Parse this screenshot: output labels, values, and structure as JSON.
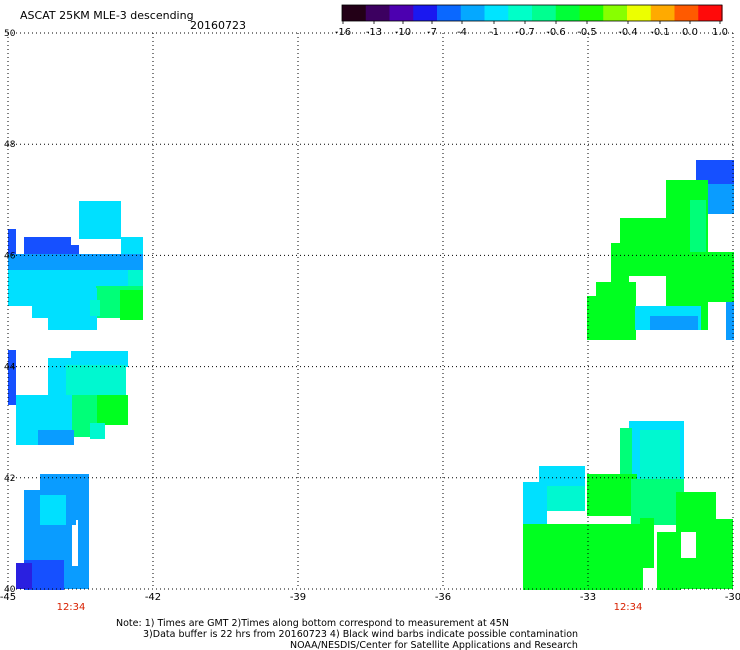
{
  "header": {
    "title": "ASCAT 25KM MLE-3 descending",
    "date": "20160723"
  },
  "colorbar": {
    "colors": [
      "#230017",
      "#3c0060",
      "#4c00b0",
      "#1a18f0",
      "#0a68ff",
      "#05a8ff",
      "#00e4ff",
      "#00ffc8",
      "#00ff90",
      "#00ff38",
      "#20ff00",
      "#88ff00",
      "#ecff00",
      "#ffaa00",
      "#ff5a00",
      "#ff0a0a"
    ],
    "tick_labels": [
      "-16",
      "-13",
      "-10",
      "-7",
      "-4",
      "-1",
      "-0.7",
      "-0.6",
      "-0.5",
      "-0.4",
      "-0.1",
      "0.0",
      "1.0"
    ]
  },
  "map": {
    "lon_range": [
      -45,
      -30
    ],
    "lat_range": [
      40,
      50
    ],
    "x_ticks": [
      "-45",
      "-42",
      "-39",
      "-36",
      "-33",
      "-30"
    ],
    "y_ticks": [
      "40",
      "42",
      "44",
      "46",
      "48",
      "50"
    ],
    "gridlines": "dotted",
    "time_labels": [
      "12:34",
      "12:34"
    ],
    "time_color": "#d82000",
    "swath_colors": {
      "blue": "#1650ff",
      "mid_blue": "#0a9cff",
      "cyan": "#00e0ff",
      "teal": "#00f8d0",
      "spring": "#00ff78",
      "green": "#00ff20",
      "indigo": "#2a20e0"
    }
  },
  "footer": {
    "line1": "Note: 1) Times are GMT 2)Times along bottom correspond to measurement at 45N",
    "line2": "3)Data buffer is 22 hrs from 20160723 4) Black wind barbs indicate possible contamination",
    "line3": "NOAA/NESDIS/Center for Satellite Applications and Research"
  }
}
